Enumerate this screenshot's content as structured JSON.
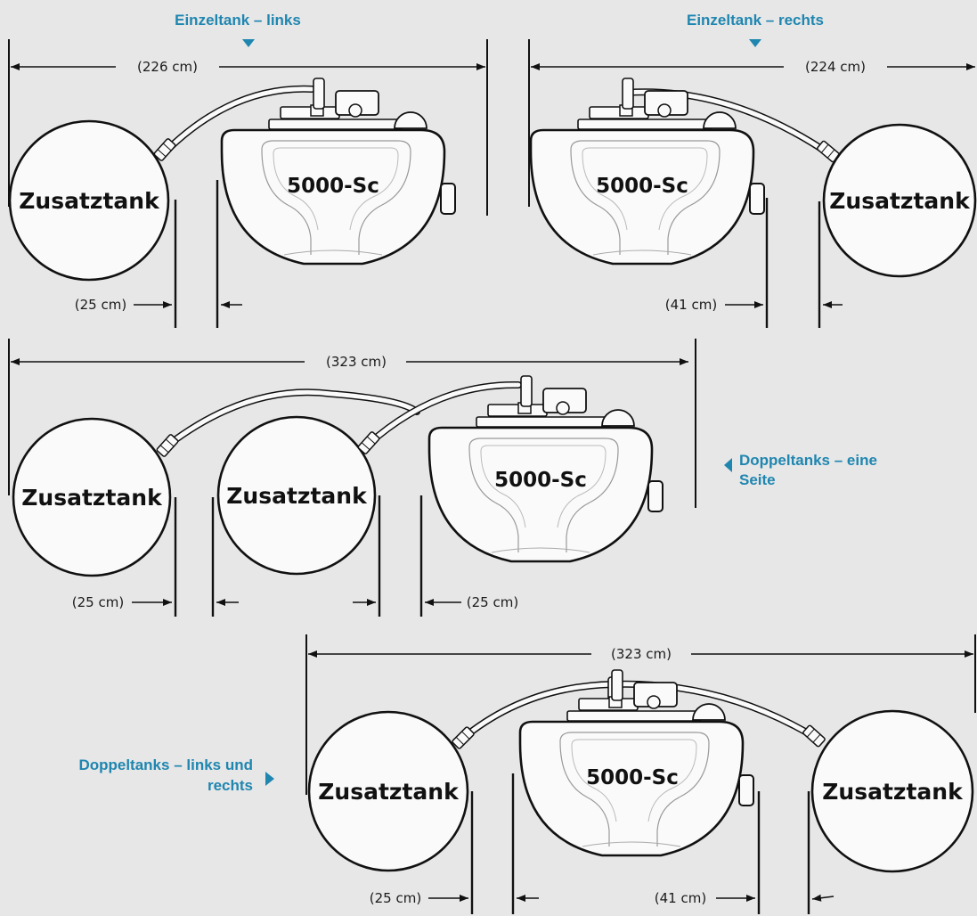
{
  "colors": {
    "background": "#e7e7e7",
    "accent": "#1f86b0",
    "line": "#111111"
  },
  "icons": [
    "arrow-down-marker-icon",
    "arrow-left-marker-icon",
    "arrow-right-marker-icon"
  ],
  "labels": {
    "unit": "5000-Sc",
    "extra_tank": "Zusatztank"
  },
  "panels": {
    "single_left": {
      "title": "Einzeltank – links",
      "total": "(226 cm)",
      "gap": "(25 cm)"
    },
    "single_right": {
      "title": "Einzeltank – rechts",
      "total": "(224 cm)",
      "gap": "(41 cm)"
    },
    "double_one_side": {
      "title_line1": "Doppeltanks – eine",
      "title_line2": "Seite",
      "total": "(323 cm)",
      "gap_1": "(25 cm)",
      "gap_2": "(25 cm)"
    },
    "double_both_sides": {
      "title_line1": "Doppeltanks – links und",
      "title_line2": "rechts",
      "total": "(323 cm)",
      "gap_left": "(25 cm)",
      "gap_right": "(41 cm)"
    }
  }
}
